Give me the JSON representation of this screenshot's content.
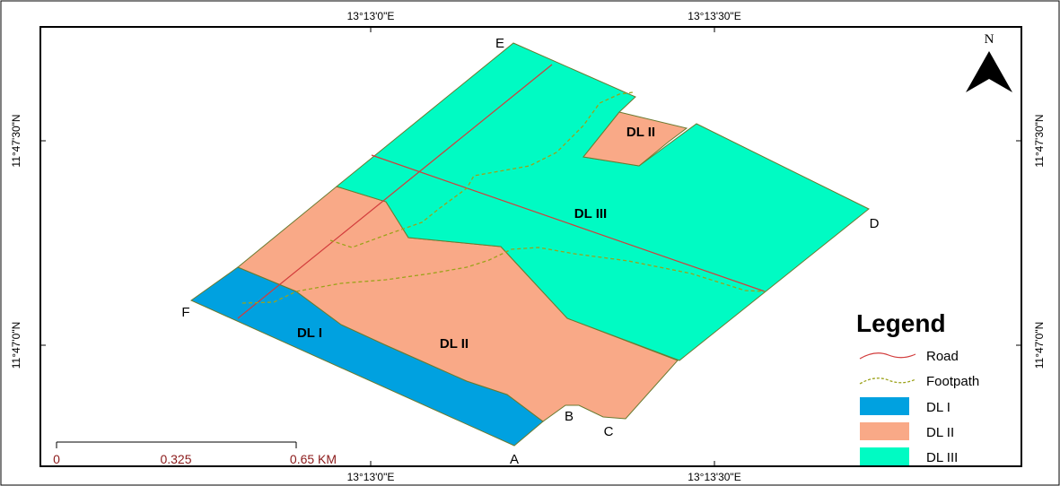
{
  "coords": {
    "top": [
      "13°13'0\"E",
      "13°13'30\"E"
    ],
    "bottom": [
      "13°13'0\"E",
      "13°13'30\"E"
    ],
    "left": [
      "11°47'30\"N",
      "11°47'0\"N"
    ],
    "right": [
      "11°47'30\"N",
      "11°47'0\"N"
    ]
  },
  "north": {
    "label": "N"
  },
  "points": [
    "A",
    "B",
    "C",
    "D",
    "E",
    "F"
  ],
  "zones": [
    "DL I",
    "DL II",
    "DL II",
    "DL III"
  ],
  "colors": {
    "dl1": "#00a1e0",
    "dl2": "#f9a987",
    "dl3": "#00fbc3",
    "road": "#d23c3c",
    "footpath": "#9ca21a",
    "zone_edge": "#7a8a2a"
  },
  "legend": {
    "title": "Legend",
    "items": [
      {
        "label": "Road",
        "kind": "line",
        "color": "#d23c3c"
      },
      {
        "label": "Footpath",
        "kind": "dashed-line",
        "color": "#9ca21a"
      },
      {
        "label": "DL I",
        "kind": "patch",
        "color": "#00a1e0"
      },
      {
        "label": "DL II",
        "kind": "patch",
        "color": "#f9a987"
      },
      {
        "label": "DL III",
        "kind": "patch",
        "color": "#00fbc3"
      }
    ]
  },
  "scale": {
    "ticks": [
      "0",
      "0.325",
      "0.65 KM"
    ]
  }
}
